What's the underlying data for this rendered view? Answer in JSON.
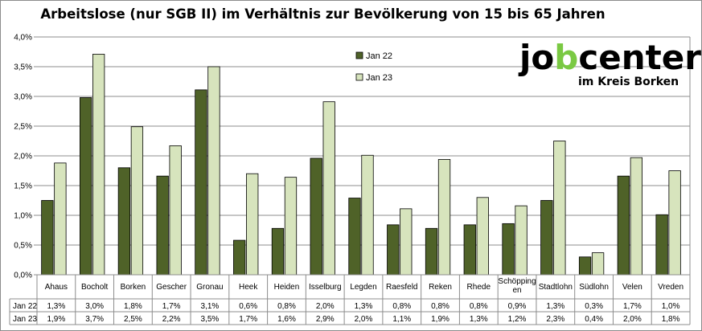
{
  "chart_data": {
    "type": "bar",
    "title": "Arbeitslose (nur SGB II) im Verhältnis zur Bevölkerung von 15 bis 65 Jahren",
    "categories": [
      "Ahaus",
      "Bocholt",
      "Borken",
      "Gescher",
      "Gronau",
      "Heek",
      "Heiden",
      "Isselburg",
      "Legden",
      "Raesfeld",
      "Reken",
      "Rhede",
      "Schöpping en",
      "Stadtlohn",
      "Südlohn",
      "Velen",
      "Vreden"
    ],
    "series": [
      {
        "name": "Jan 22",
        "color": "#4f6228",
        "values": [
          1.25,
          2.98,
          1.8,
          1.66,
          3.11,
          0.58,
          0.78,
          1.96,
          1.29,
          0.84,
          0.78,
          0.84,
          0.86,
          1.25,
          0.3,
          1.66,
          1.01
        ],
        "labels": [
          "1,3%",
          "3,0%",
          "1,8%",
          "1,7%",
          "3,1%",
          "0,6%",
          "0,8%",
          "2,0%",
          "1,3%",
          "0,8%",
          "0,8%",
          "0,8%",
          "0,9%",
          "1,3%",
          "0,3%",
          "1,7%",
          "1,0%"
        ]
      },
      {
        "name": "Jan 23",
        "color": "#d7e4bd",
        "values": [
          1.88,
          3.71,
          2.49,
          2.17,
          3.5,
          1.7,
          1.64,
          2.91,
          2.01,
          1.11,
          1.94,
          1.3,
          1.16,
          2.25,
          0.37,
          1.97,
          1.75
        ],
        "labels": [
          "1,9%",
          "3,7%",
          "2,5%",
          "2,2%",
          "3,5%",
          "1,7%",
          "1,6%",
          "2,9%",
          "2,0%",
          "1,1%",
          "1,9%",
          "1,3%",
          "1,2%",
          "2,3%",
          "0,4%",
          "2,0%",
          "1,8%"
        ]
      }
    ],
    "ylim": [
      0,
      4.0
    ],
    "yticks": [
      "0,0%",
      "0,5%",
      "1,0%",
      "1,5%",
      "2,0%",
      "2,5%",
      "3,0%",
      "3,5%",
      "4,0%"
    ],
    "grid": true,
    "legend_position": "top-center",
    "data_table": true
  },
  "logo": {
    "main": "jobcenter",
    "sub": "im Kreis Borken",
    "accent_color": "#7ac943"
  }
}
